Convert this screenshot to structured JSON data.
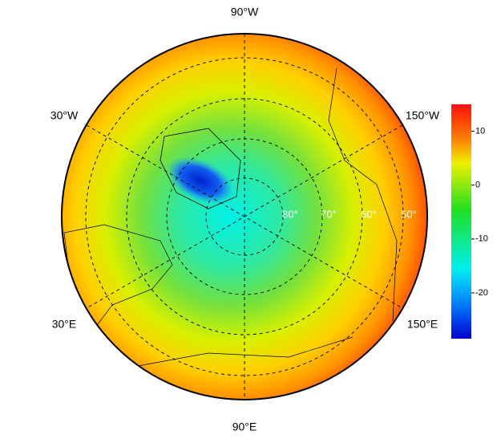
{
  "map": {
    "longitude_labels": [
      "90°W",
      "30°W",
      "150°W",
      "30°E",
      "150°E",
      "90°E"
    ],
    "latitude_labels": [
      "80°",
      "70°",
      "60°",
      "50°"
    ]
  },
  "colorbar": {
    "lim": [
      -28.5,
      15
    ],
    "ticks": [
      10,
      0,
      -10,
      -20
    ]
  }
}
